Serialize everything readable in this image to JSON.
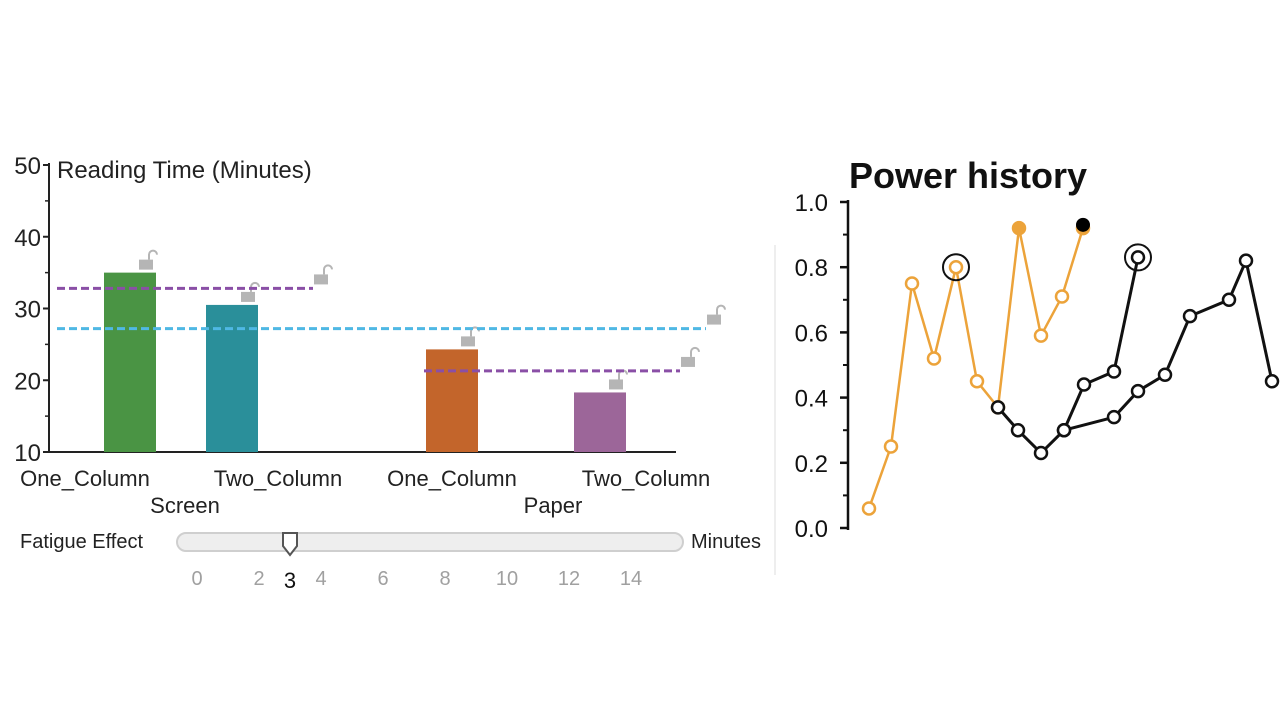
{
  "chart_data": [
    {
      "type": "bar",
      "title": "Reading Time (Minutes)",
      "categories": [
        "One_Column",
        "Two_Column",
        "One_Column",
        "Two_Column"
      ],
      "groups": [
        "Screen",
        "Paper"
      ],
      "group_of_category": [
        0,
        0,
        1,
        1
      ],
      "values": [
        35,
        30.5,
        24.3,
        18.3
      ],
      "colors": [
        "#4a9444",
        "#2a8f9a",
        "#c3652b",
        "#9c6699"
      ],
      "ylim": [
        10,
        50
      ],
      "yticks": [
        10,
        20,
        30,
        40,
        50
      ],
      "reference_lines": [
        {
          "value": 32.8,
          "color": "#8a4fa6",
          "span_group": 0
        },
        {
          "value": 27.2,
          "color": "#4fb8e4",
          "span_group": "all"
        },
        {
          "value": 21.3,
          "color": "#8a4fa6",
          "span_group": 1
        }
      ],
      "slider": {
        "label": "Fatigue Effect",
        "unit": "Minutes",
        "min": 0,
        "max": 16,
        "ticks": [
          0,
          2,
          4,
          6,
          8,
          10,
          12,
          14
        ],
        "value": 3
      }
    },
    {
      "type": "line",
      "title": "Power history",
      "ylim": [
        0,
        1
      ],
      "yticks": [
        "0.0",
        "0.2",
        "0.4",
        "0.6",
        "0.8",
        "1.0"
      ],
      "series": [
        {
          "color": "#eca33a",
          "values": [
            0.06,
            0.25,
            0.75,
            0.52,
            0.8,
            0.45,
            0.37,
            0.92,
            0.59,
            0.71,
            0.92
          ],
          "hollow": [
            true,
            true,
            true,
            true,
            true,
            true,
            true,
            false,
            true,
            true,
            false
          ],
          "highlighted_index": 4
        },
        {
          "color": "#111111",
          "values": [
            0.37,
            0.3,
            0.23,
            0.3,
            0.44,
            0.48,
            0.83
          ],
          "highlighted_index": 6
        },
        {
          "color": "#111111",
          "values": [
            0.3,
            0.34,
            0.42,
            0.47,
            0.65,
            0.7,
            0.82,
            0.45
          ]
        }
      ],
      "extra_point": {
        "value": 0.93,
        "color": "#000000"
      }
    }
  ]
}
